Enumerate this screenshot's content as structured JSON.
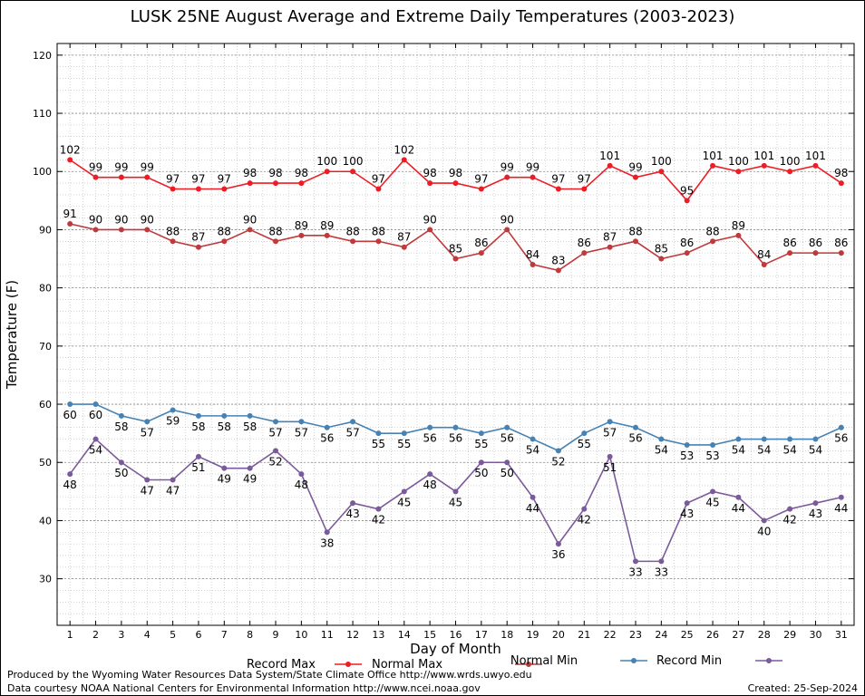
{
  "credits": {
    "produced_by": "Produced by the Wyoming Water Resources Data System/State Climate Office http://www.wrds.uwyo.edu",
    "data_courtesy": "Data courtesy NOAA National Centers for Environmental Information http://www.ncei.noaa.gov",
    "created": "Created:  25-Sep-2024"
  },
  "chart_data": {
    "type": "line",
    "title": "LUSK 25NE August Average and Extreme Daily Temperatures (2003-2023)",
    "xlabel": "Day of Month",
    "ylabel": "Temperature (F)",
    "x": [
      1,
      2,
      3,
      4,
      5,
      6,
      7,
      8,
      9,
      10,
      11,
      12,
      13,
      14,
      15,
      16,
      17,
      18,
      19,
      20,
      21,
      22,
      23,
      24,
      25,
      26,
      27,
      28,
      29,
      30,
      31
    ],
    "xlim": [
      0.5,
      31.5
    ],
    "ylim": [
      22,
      122
    ],
    "yticks": [
      30,
      40,
      50,
      60,
      70,
      80,
      90,
      100,
      110,
      120
    ],
    "grid": true,
    "legend_position": "bottom",
    "series": [
      {
        "name": "Record Max",
        "color": "#ee1c25",
        "label_pos": "above",
        "values": [
          102,
          99,
          99,
          99,
          97,
          97,
          97,
          98,
          98,
          98,
          100,
          100,
          97,
          102,
          98,
          98,
          97,
          99,
          99,
          97,
          97,
          101,
          99,
          100,
          95,
          101,
          100,
          101,
          100,
          101,
          98
        ]
      },
      {
        "name": "Normal Max",
        "color": "#c0393b",
        "label_pos": "above",
        "values": [
          91,
          90,
          90,
          90,
          88,
          87,
          88,
          90,
          88,
          89,
          89,
          88,
          88,
          87,
          90,
          85,
          86,
          90,
          84,
          83,
          86,
          87,
          88,
          85,
          86,
          88,
          89,
          84,
          86,
          86,
          86
        ]
      },
      {
        "name": "Normal Min",
        "color": "#4682b4",
        "label_pos": "below",
        "values": [
          60,
          60,
          58,
          57,
          59,
          58,
          58,
          58,
          57,
          57,
          56,
          57,
          55,
          55,
          56,
          56,
          55,
          56,
          54,
          52,
          55,
          57,
          56,
          54,
          53,
          53,
          54,
          54,
          54,
          54,
          56
        ]
      },
      {
        "name": "Record Min",
        "color": "#7b5a9b",
        "label_pos": "below",
        "values": [
          48,
          54,
          50,
          47,
          47,
          51,
          49,
          49,
          52,
          48,
          38,
          43,
          42,
          45,
          48,
          45,
          50,
          50,
          44,
          36,
          42,
          51,
          33,
          33,
          43,
          45,
          44,
          40,
          42,
          43,
          44
        ]
      }
    ]
  }
}
